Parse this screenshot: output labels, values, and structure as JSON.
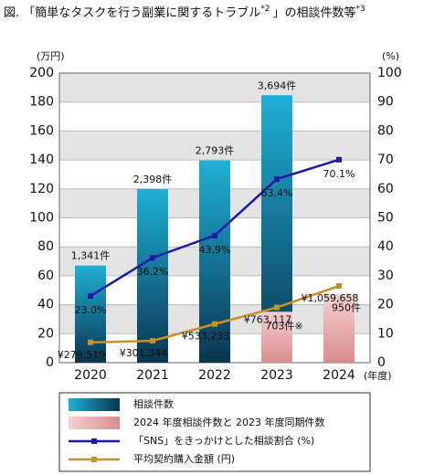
{
  "chart_data": {
    "type": "bar-line",
    "title": [
      "図. 「簡単なタスクを行う副業に関するトラブル",
      "*2",
      "」の相談件数等",
      "*3"
    ],
    "ylabel": "(万円)",
    "y2label": "(%)",
    "xlabel": "(年度)",
    "categories": [
      "2020",
      "2021",
      "2022",
      "2023",
      "2024"
    ],
    "ylim": [
      0,
      200
    ],
    "yticks": [
      0,
      20,
      40,
      60,
      80,
      100,
      120,
      140,
      160,
      180,
      200
    ],
    "y2lim": [
      0,
      100
    ],
    "y2ticks": [
      0,
      10,
      20,
      30,
      40,
      50,
      60,
      70,
      80,
      90,
      100
    ],
    "y3lim": [
      0,
      4000
    ],
    "y4lim": [
      0,
      4000000
    ],
    "grid": true,
    "series": [
      {
        "name": "相談件数",
        "kind": "bar",
        "axis": "y3",
        "color": [
          "#1fb0d6",
          "#0a3550"
        ],
        "values": [
          1341,
          2398,
          2793,
          3694,
          null
        ],
        "value_labels": [
          "1,341件",
          "2,398件",
          "2,793件",
          "3,694件",
          null
        ]
      },
      {
        "name": "2024 年度相談件数と 2023 年度同期件数",
        "kind": "bar",
        "axis": "y3",
        "color": [
          "#f3d0d0",
          "#d98d8d"
        ],
        "values": [
          null,
          null,
          null,
          703,
          950
        ],
        "value_labels": [
          null,
          null,
          null,
          "703件※",
          "950件"
        ]
      },
      {
        "name": "「SNS」をきっかけとした相談割合 (%)",
        "kind": "line",
        "axis": "y2",
        "color": "#1b1ba8",
        "values": [
          23.0,
          36.2,
          43.9,
          63.4,
          70.1
        ],
        "value_labels": [
          "23.0%",
          "36.2%",
          "43.9%",
          "63.4%",
          "70.1%"
        ]
      },
      {
        "name": "平均契約購入金額 (円)",
        "kind": "line",
        "axis": "y4",
        "color": "#c99024",
        "values": [
          279519,
          301344,
          533233,
          763117,
          1059658
        ],
        "value_labels": [
          "¥279,519",
          "¥301,344",
          "¥533,233",
          "¥763,117",
          "¥1,059,658"
        ]
      }
    ]
  }
}
